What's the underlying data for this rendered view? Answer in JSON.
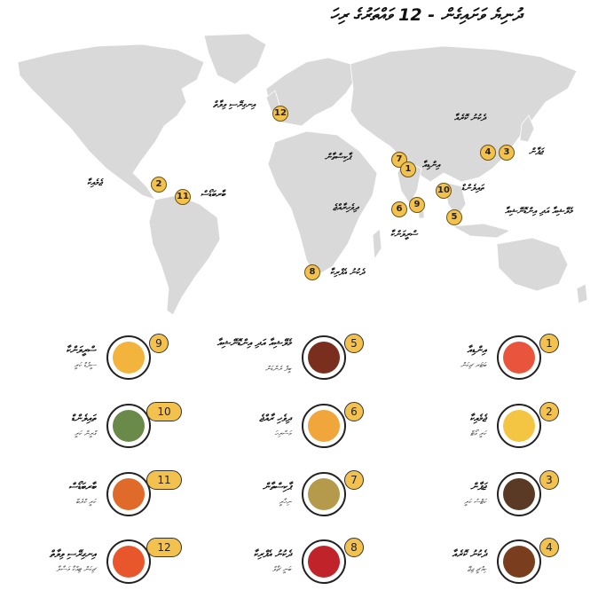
{
  "title": "ދުނިޔެ ވަށައިގެން - 12 ވައްތަރުގެ ރިހަ",
  "map_pins": [
    {
      "number": "12",
      "label": "އިނގިރޭސި ވިލާތް"
    },
    {
      "number": "7",
      "label": "ޕާކިސްތާން"
    },
    {
      "number": "1",
      "label": "އިންޑިއާ"
    },
    {
      "number": "4",
      "label": "ދެކުނު ކޮރެއާ"
    },
    {
      "number": "3",
      "label": "ޖަޕާން"
    },
    {
      "number": "2",
      "label": "ޖެމެއިކާ"
    },
    {
      "number": "11",
      "label": "ބާރބަޑޯސް"
    },
    {
      "number": "10",
      "label": "ތައިލެންޑް"
    },
    {
      "number": "5",
      "label": "މެލޭޝިއާ އަދި އިންޑޮނޭޝިއާ"
    },
    {
      "number": "6",
      "label": "ދިވެހިރާއްޖެ"
    },
    {
      "number": "9",
      "label": "ސްރީލަންކާ"
    },
    {
      "number": "8",
      "label": "ދެކުނު އެފްރިކާ"
    }
  ],
  "dishes": [
    {
      "number": "1",
      "name": "އިންޑިއާ",
      "sub": "ބަޓަރ ޗިކަން"
    },
    {
      "number": "2",
      "name": "ޖެމެއިކާ",
      "sub": "ކަރީ ގޯޓް"
    },
    {
      "number": "3",
      "name": "ޖަޕާން",
      "sub": "ކަޓްސު ކަރީ"
    },
    {
      "number": "4",
      "name": "ދެކުނު ކޮރެއާ",
      "sub": "ކިމްޗީ ޖިޖޭ"
    },
    {
      "number": "5",
      "name": "މެލޭޝިއާ އަދި އިންޑޮނޭޝިއާ",
      "sub": "ބީފް ރެންޑަން"
    },
    {
      "number": "6",
      "name": "ދިވެހި ރާއްޖެ",
      "sub": "މަސްރިހަ"
    },
    {
      "number": "7",
      "name": "ޕާކިސްތާން",
      "sub": "ނިހާރީ"
    },
    {
      "number": "8",
      "name": "ދެކުނު އެފްރިކާ",
      "sub": "ބަނީ ޗާވް"
    },
    {
      "number": "9",
      "name": "ސްރީލަންކާ",
      "sub": "ސީފުޑް ކަރީ"
    },
    {
      "number": "10",
      "name": "ތައިލެންޑް",
      "sub": "ގްރީން ކަރީ"
    },
    {
      "number": "11",
      "name": "ބާރބަޑޯސް",
      "sub": "ކަރީ ކްރެބް"
    },
    {
      "number": "12",
      "name": "އިނގިރޭސި ވިލާތް",
      "sub": "ޗިކަން ޓިއްކާ މަސާލާ"
    }
  ],
  "colors": {
    "pin": "#f2c14e",
    "land": "#d9d9d9",
    "plates": [
      "#e8553c",
      "#f4c542",
      "#5a3a24",
      "#7a3e1e",
      "#7a2f1e",
      "#f0a63a",
      "#b59a4c",
      "#c0242a",
      "#f2b43c",
      "#6a8a4a",
      "#e06a2a",
      "#e8562c"
    ]
  }
}
